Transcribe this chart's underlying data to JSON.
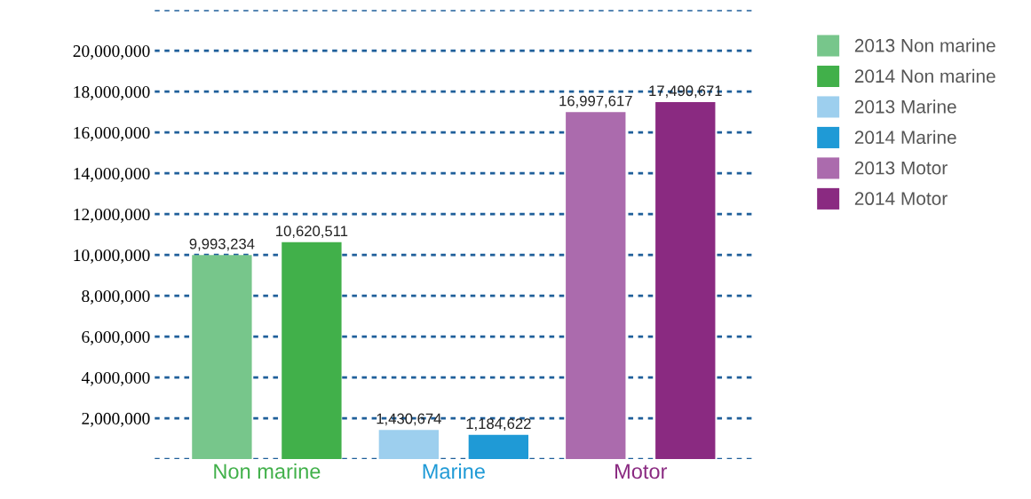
{
  "chart_data": {
    "type": "bar",
    "categories": [
      "Non marine",
      "Marine",
      "Motor"
    ],
    "series": [
      {
        "name": "2013 Non marine",
        "color": "#77c68b",
        "values": [
          9993234,
          null,
          null
        ],
        "value_labels": [
          "9,993,234",
          null,
          null
        ]
      },
      {
        "name": "2014 Non marine",
        "color": "#41b04a",
        "values": [
          10620511,
          null,
          null
        ],
        "value_labels": [
          "10,620,511",
          null,
          null
        ]
      },
      {
        "name": "2013 Marine",
        "color": "#9dcfee",
        "values": [
          null,
          1430674,
          null
        ],
        "value_labels": [
          null,
          "1,430,674",
          null
        ]
      },
      {
        "name": "2014 Marine",
        "color": "#1f9ad6",
        "values": [
          null,
          1184622,
          null
        ],
        "value_labels": [
          null,
          "1,184,622",
          null
        ]
      },
      {
        "name": "2013 Motor",
        "color": "#ab6bad",
        "values": [
          null,
          null,
          16997617
        ],
        "value_labels": [
          null,
          null,
          "16,997,617"
        ]
      },
      {
        "name": "2014 Motor",
        "color": "#8a2a81",
        "values": [
          null,
          null,
          17490671
        ],
        "value_labels": [
          null,
          null,
          "17,490,671"
        ]
      }
    ],
    "ylim": [
      0,
      22000000
    ],
    "yticks": [
      {
        "value": 0,
        "label": null
      },
      {
        "value": 2000000,
        "label": "2,000,000"
      },
      {
        "value": 4000000,
        "label": "4,000,000"
      },
      {
        "value": 6000000,
        "label": "6,000,000"
      },
      {
        "value": 8000000,
        "label": "8,000,000"
      },
      {
        "value": 10000000,
        "label": "10,000,000"
      },
      {
        "value": 12000000,
        "label": "12,000,000"
      },
      {
        "value": 14000000,
        "label": "14,000,000"
      },
      {
        "value": 16000000,
        "label": "16,000,000"
      },
      {
        "value": 18000000,
        "label": "18,000,000"
      },
      {
        "value": 20000000,
        "label": "20,000,000"
      },
      {
        "value": 22000000,
        "label": null
      }
    ],
    "grid": "y",
    "legend": "right"
  }
}
